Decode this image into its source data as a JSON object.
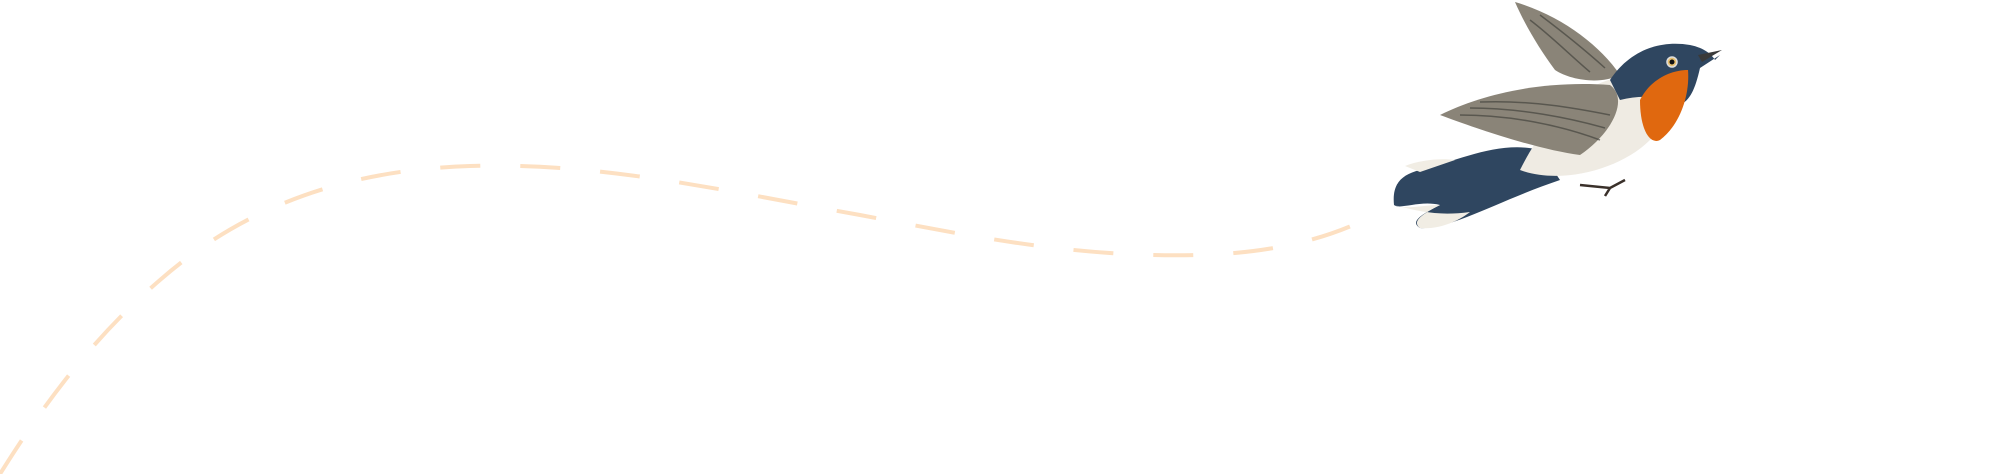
{
  "colors": {
    "background": "#ffffff",
    "flight_path": "#fde0c2",
    "bird_back": "#2f4660",
    "bird_throat": "#e0680f",
    "bird_belly": "#efebe3",
    "bird_wing": "#8a8478"
  },
  "illustration": {
    "icon": "flying-bird-illustration",
    "path_style": "dashed"
  }
}
